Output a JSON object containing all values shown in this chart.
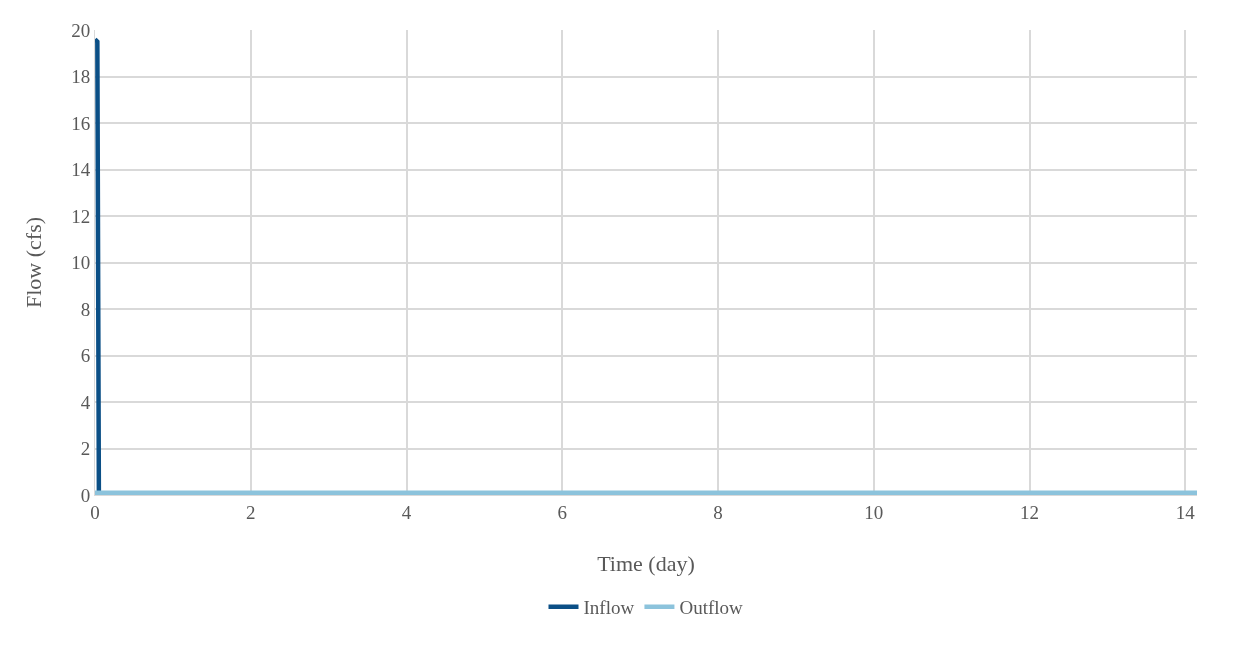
{
  "chart_data": {
    "type": "line",
    "xlabel": "Time (day)",
    "ylabel": "Flow (cfs)",
    "series": [
      {
        "name": "Inflow",
        "color": "#0b4f86",
        "x": [
          0,
          0.03,
          0.05
        ],
        "values": [
          19.6,
          19.5,
          0
        ]
      },
      {
        "name": "Outflow",
        "color": "#8cc3dc",
        "x": [
          0,
          14.15
        ],
        "values": [
          0.1,
          0.1
        ]
      }
    ],
    "xlim": [
      0,
      14.15
    ],
    "xticks": [
      0,
      2,
      4,
      6,
      8,
      10,
      12,
      14
    ],
    "ylim": [
      0,
      20
    ],
    "yticks": [
      0,
      2,
      4,
      6,
      8,
      10,
      12,
      14,
      16,
      18,
      20
    ],
    "grid": true,
    "legend": "bottom",
    "marker": "none",
    "line_style": "solid"
  }
}
